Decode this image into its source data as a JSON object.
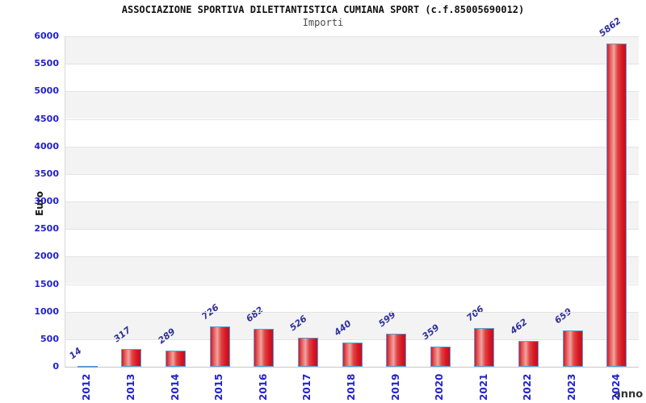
{
  "chart_data": {
    "type": "bar",
    "title": "ASSOCIAZIONE SPORTIVA DILETTANTISTICA CUMIANA SPORT (c.f.85005690012)",
    "subtitle": "Importi",
    "xlabel": "anno",
    "ylabel": "Euro",
    "categories": [
      "2012",
      "2013",
      "2014",
      "2015",
      "2016",
      "2017",
      "2018",
      "2019",
      "2020",
      "2021",
      "2022",
      "2023",
      "2024"
    ],
    "values": [
      14,
      317,
      289,
      726,
      682,
      526,
      440,
      599,
      359,
      706,
      462,
      659,
      5862
    ],
    "ylim": [
      0,
      6000
    ],
    "ytick_step": 500,
    "grid": true,
    "legend": "none",
    "colors": {
      "bar_fill_main": "#d81626",
      "bar_fill_dark": "#bf101d",
      "bar_fill_highlight": "#efa3a1",
      "bar_border": "#5d9bd3",
      "tick_label": "#2222cc",
      "value_label": "#30309c",
      "band_gray": "#f3f3f3",
      "band_white": "#ffffff",
      "gridline": "#e3e3e3",
      "title": "#111111",
      "subtitle": "#4a4a4a",
      "axis_title": "#1a1a1a"
    }
  }
}
